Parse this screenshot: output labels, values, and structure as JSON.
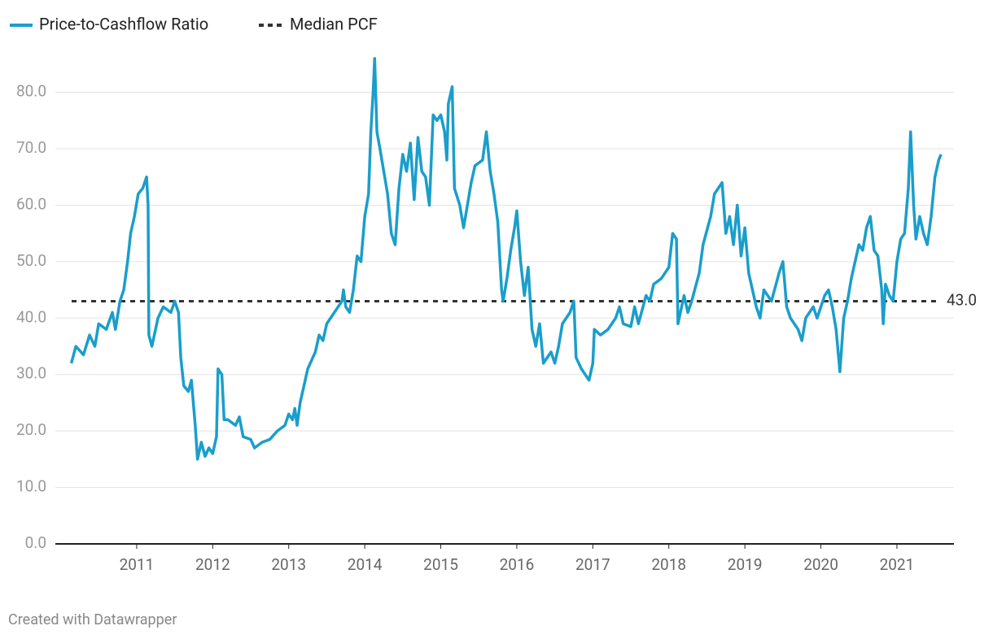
{
  "chart_data": {
    "type": "line",
    "x": [
      2010.14,
      2010.2,
      2010.3,
      2010.38,
      2010.45,
      2010.5,
      2010.6,
      2010.68,
      2010.72,
      2010.78,
      2010.83,
      2010.88,
      2010.92,
      2010.97,
      2011.02,
      2011.08,
      2011.13,
      2011.15,
      2011.16,
      2011.2,
      2011.28,
      2011.35,
      2011.45,
      2011.5,
      2011.55,
      2011.58,
      2011.62,
      2011.68,
      2011.72,
      2011.77,
      2011.8,
      2011.85,
      2011.9,
      2011.95,
      2012.0,
      2012.05,
      2012.07,
      2012.12,
      2012.15,
      2012.2,
      2012.3,
      2012.35,
      2012.4,
      2012.5,
      2012.55,
      2012.65,
      2012.75,
      2012.85,
      2012.95,
      2013.0,
      2013.05,
      2013.08,
      2013.11,
      2013.15,
      2013.2,
      2013.25,
      2013.35,
      2013.4,
      2013.45,
      2013.5,
      2013.55,
      2013.6,
      2013.7,
      2013.72,
      2013.75,
      2013.8,
      2013.85,
      2013.9,
      2013.95,
      2014.0,
      2014.05,
      2014.08,
      2014.11,
      2014.13,
      2014.16,
      2014.2,
      2014.25,
      2014.3,
      2014.35,
      2014.4,
      2014.45,
      2014.5,
      2014.55,
      2014.6,
      2014.65,
      2014.7,
      2014.75,
      2014.8,
      2014.85,
      2014.9,
      2014.95,
      2015.0,
      2015.05,
      2015.08,
      2015.1,
      2015.15,
      2015.18,
      2015.25,
      2015.3,
      2015.35,
      2015.4,
      2015.45,
      2015.55,
      2015.6,
      2015.65,
      2015.7,
      2015.75,
      2015.8,
      2015.82,
      2015.87,
      2015.92,
      2015.97,
      2016.0,
      2016.05,
      2016.1,
      2016.15,
      2016.2,
      2016.25,
      2016.3,
      2016.35,
      2016.4,
      2016.45,
      2016.5,
      2016.55,
      2016.6,
      2016.65,
      2016.7,
      2016.75,
      2016.78,
      2016.85,
      2016.9,
      2016.95,
      2017.0,
      2017.02,
      2017.1,
      2017.2,
      2017.3,
      2017.35,
      2017.4,
      2017.5,
      2017.55,
      2017.6,
      2017.7,
      2017.75,
      2017.8,
      2017.9,
      2017.95,
      2018.0,
      2018.05,
      2018.1,
      2018.12,
      2018.2,
      2018.25,
      2018.3,
      2018.4,
      2018.45,
      2018.55,
      2018.6,
      2018.7,
      2018.75,
      2018.8,
      2018.85,
      2018.9,
      2018.95,
      2019.0,
      2019.05,
      2019.1,
      2019.15,
      2019.2,
      2019.25,
      2019.35,
      2019.45,
      2019.5,
      2019.55,
      2019.6,
      2019.7,
      2019.75,
      2019.8,
      2019.9,
      2019.95,
      2020.05,
      2020.1,
      2020.15,
      2020.2,
      2020.25,
      2020.3,
      2020.35,
      2020.4,
      2020.5,
      2020.55,
      2020.6,
      2020.65,
      2020.7,
      2020.75,
      2020.8,
      2020.82,
      2020.85,
      2020.9,
      2020.95,
      2021.0,
      2021.05,
      2021.1,
      2021.15,
      2021.18,
      2021.22,
      2021.25,
      2021.3,
      2021.35,
      2021.4,
      2021.45,
      2021.5,
      2021.55,
      2021.58
    ],
    "series": [
      {
        "name": "Price-to-Cashflow Ratio",
        "color": "#1a9ecb",
        "values": [
          32,
          35,
          33.5,
          37,
          35,
          39,
          38,
          41,
          38,
          43,
          45,
          50,
          55,
          58,
          62,
          63,
          65,
          60,
          37,
          35,
          40,
          42,
          41,
          43,
          41,
          33,
          28,
          27,
          29,
          21,
          15,
          18,
          15.5,
          17,
          16,
          19,
          31,
          30,
          22,
          22,
          21,
          22.5,
          19,
          18.5,
          17,
          18,
          18.5,
          20,
          21,
          23,
          22,
          24,
          21,
          25,
          28,
          31,
          34,
          37,
          36,
          39,
          40,
          41,
          43,
          45,
          42,
          41,
          45,
          51,
          50,
          58,
          62,
          73,
          80,
          86,
          73,
          70,
          66,
          62,
          55,
          53,
          63,
          69,
          66,
          71,
          61,
          72,
          66,
          65,
          60,
          76,
          75,
          76,
          73,
          68,
          78,
          81,
          63,
          60,
          56,
          60,
          64,
          67,
          68,
          73,
          66,
          62,
          57,
          45,
          43,
          47,
          52,
          56,
          59,
          50,
          44,
          49,
          38,
          35,
          39,
          32,
          33,
          34,
          32,
          35,
          39,
          40,
          41,
          43,
          33,
          31,
          30,
          29,
          32,
          38,
          37,
          38,
          40,
          42,
          39,
          38.5,
          42,
          39,
          44,
          43,
          46,
          47,
          48,
          49,
          55,
          54,
          39,
          44,
          41,
          43,
          48,
          53,
          58,
          62,
          64,
          55,
          58,
          53,
          60,
          51,
          56,
          48,
          45,
          42,
          40,
          45,
          43,
          48,
          50,
          42,
          40,
          38,
          36,
          40,
          42,
          40,
          44,
          45,
          42,
          38,
          30.5,
          40,
          43,
          47,
          53,
          52,
          56,
          58,
          52,
          51,
          45,
          39,
          46,
          44,
          43,
          50,
          54,
          55,
          63,
          73,
          60,
          54,
          58,
          55,
          53,
          58,
          65,
          68,
          69
        ]
      }
    ],
    "median": {
      "name": "Median PCF",
      "value": 43,
      "label": "43.0",
      "color": "#333333"
    },
    "xlim": [
      2009.93,
      2021.75
    ],
    "xticks": [
      2011,
      2012,
      2013,
      2014,
      2015,
      2016,
      2017,
      2018,
      2019,
      2020,
      2021
    ],
    "ylim": [
      0,
      88
    ],
    "yticks": [
      {
        "value": 0,
        "label": "0.0"
      },
      {
        "value": 10,
        "label": "10.0"
      },
      {
        "value": 20,
        "label": "20.0"
      },
      {
        "value": 30,
        "label": "30.0"
      },
      {
        "value": 40,
        "label": "40.0"
      },
      {
        "value": 50,
        "label": "50.0"
      },
      {
        "value": 60,
        "label": "60.0"
      },
      {
        "value": 70,
        "label": "70.0"
      },
      {
        "value": 80,
        "label": "80.0"
      }
    ],
    "grid": true,
    "source": "Created with Datawrapper"
  }
}
